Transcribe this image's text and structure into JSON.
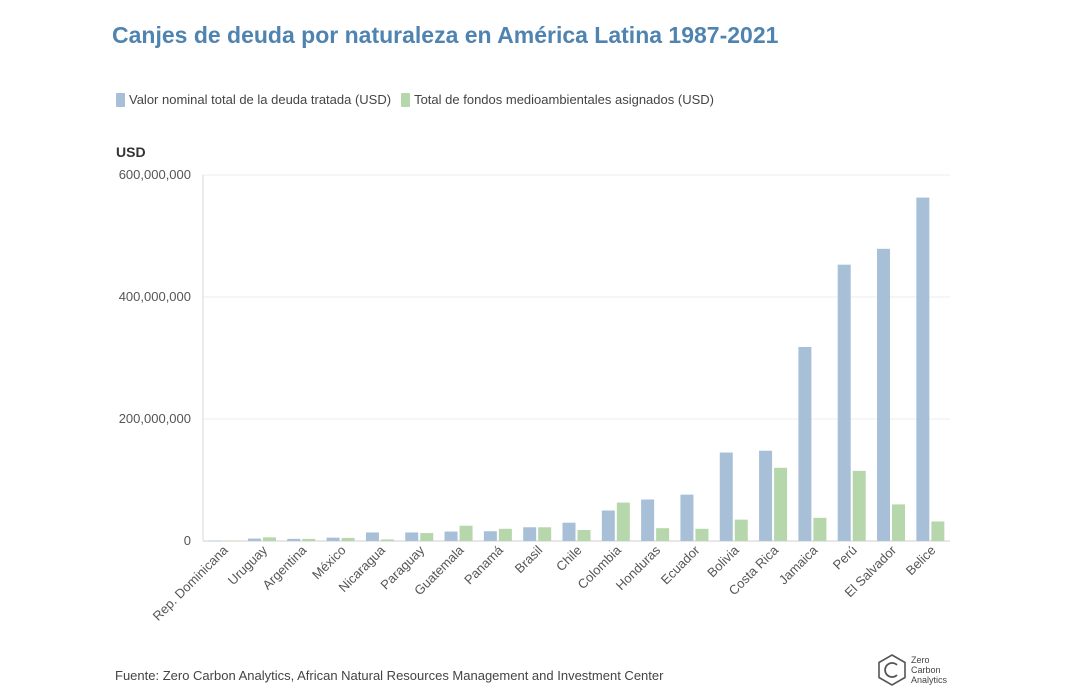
{
  "chart_data": {
    "type": "bar",
    "title": "Canjes de deuda por naturaleza en América Latina 1987-2021",
    "ylabel": "USD",
    "xlabel": "",
    "source": "Fuente: Zero Carbon Analytics, African Natural Resources Management and Investment Center",
    "categories": [
      "Rep. Dominicana",
      "Uruguay",
      "Argentina",
      "México",
      "Nicaragua",
      "Paraguay",
      "Guatemala",
      "Panamá",
      "Brasil",
      "Chile",
      "Colombia",
      "Honduras",
      "Ecuador",
      "Bolivia",
      "Costa Rica",
      "Jamaica",
      "Perú",
      "El Salvador",
      "Belice"
    ],
    "series": [
      {
        "name": "Valor nominal total de la deuda tratada (USD)",
        "color": "#a7c0d7",
        "values": [
          500000,
          4000000,
          3500000,
          5500000,
          14000000,
          14000000,
          15500000,
          16000000,
          22500000,
          30000000,
          50000000,
          68000000,
          76000000,
          145000000,
          148000000,
          318000000,
          453000000,
          479000000,
          563000000
        ]
      },
      {
        "name": "Total de fondos medioambientales asignados (USD)",
        "color": "#b6d6ab",
        "values": [
          300000,
          6000000,
          3500000,
          5000000,
          2500000,
          13000000,
          25000000,
          20000000,
          22500000,
          18000000,
          63000000,
          21000000,
          20000000,
          35000000,
          120000000,
          38000000,
          115000000,
          60000000,
          32000000
        ]
      }
    ],
    "ylim": [
      0,
      600000000
    ],
    "yticks": [
      0,
      200000000,
      400000000,
      600000000
    ],
    "ytick_labels": [
      "0",
      "200,000,000",
      "400,000,000",
      "600,000,000"
    ],
    "grid": true,
    "legend_position": "top-left"
  },
  "logo": {
    "name": "zero-carbon-analytics-logo",
    "lines": [
      "Zero",
      "Carbon",
      "Analytics"
    ]
  }
}
